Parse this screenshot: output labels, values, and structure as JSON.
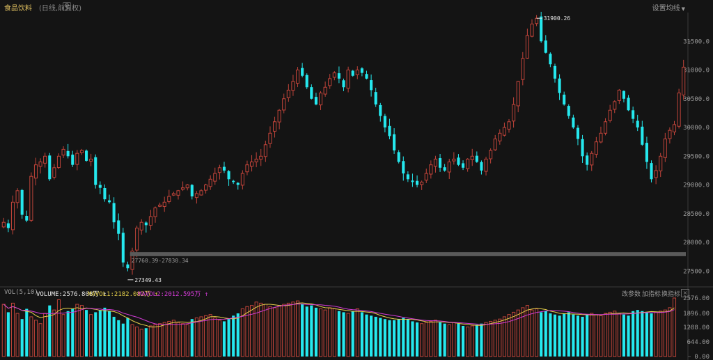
{
  "header": {
    "title": "食品饮料",
    "subtitle": "(日线,前复权)",
    "settings_label": "设置均线",
    "caret": "▼"
  },
  "volume_panel": {
    "name": "VOL(5,10)",
    "volume_label": "VOLUME:2576.808万 ↑",
    "mavol1_label": "MAVOL1:2182.082万 ↑",
    "mavol2_label": "MAVOL2:2012.595万 ↑",
    "actions": [
      "改参数",
      "加指标",
      "换指标"
    ],
    "close": "×"
  },
  "colors": {
    "up": "#c2443a",
    "down": "#25e8ee",
    "mavol1": "#e6d04a",
    "mavol2": "#d33bd6",
    "range_bar": "#5a5a5a"
  },
  "chart_data": [
    {
      "type": "candlestick",
      "title": "食品饮料",
      "subtitle": "(日线,前复权)",
      "ylim": [
        27250,
        32000
      ],
      "y_ticks": [
        "31500.0",
        "31000.0",
        "30500.0",
        "30000.0",
        "29500.0",
        "29000.0",
        "28500.0",
        "28000.0",
        "27500.0"
      ],
      "y_tick_values": [
        31500,
        31000,
        30500,
        30000,
        29500,
        29000,
        28500,
        28000,
        27500
      ],
      "annotations": {
        "high": {
          "label": "31900.26",
          "value": 31900.26
        },
        "low": {
          "label": "27349.43",
          "value": 27349.43
        },
        "range_label": "27760.39-27830.34",
        "range": [
          27760.39,
          27830.34
        ]
      },
      "close_path": [
        28350,
        28250,
        28700,
        28900,
        28480,
        28380,
        29150,
        29350,
        29400,
        29500,
        29100,
        29300,
        29500,
        29620,
        29500,
        29350,
        29550,
        29600,
        29420,
        29450,
        29000,
        28950,
        28750,
        28700,
        28350,
        28150,
        27650,
        27550,
        27850,
        28250,
        28350,
        28300,
        28450,
        28600,
        28650,
        28700,
        28800,
        28850,
        28900,
        28950,
        29000,
        28800,
        28850,
        28900,
        29000,
        29100,
        29200,
        29300,
        29250,
        29100,
        29050,
        29000,
        29200,
        29350,
        29400,
        29450,
        29500,
        29700,
        29900,
        30100,
        30300,
        30500,
        30650,
        30800,
        31000,
        30900,
        30700,
        30500,
        30400,
        30600,
        30700,
        30850,
        30950,
        30850,
        30700,
        31000,
        30900,
        31000,
        30950,
        30850,
        30650,
        30400,
        30200,
        30000,
        29850,
        29600,
        29400,
        29200,
        29100,
        29050,
        29000,
        29050,
        29200,
        29350,
        29450,
        29300,
        29250,
        29400,
        29450,
        29350,
        29300,
        29450,
        29500,
        29400,
        29250,
        29450,
        29600,
        29800,
        29900,
        30000,
        30100,
        30400,
        30800,
        31200,
        31600,
        31800,
        31900,
        31500,
        31300,
        31100,
        30850,
        30600,
        30400,
        30200,
        30000,
        29800,
        29500,
        29350,
        29550,
        29750,
        29900,
        30100,
        30300,
        30450,
        30650,
        30500,
        30300,
        30150,
        30000,
        29700,
        29400,
        29100,
        29250,
        29500,
        29800,
        29950,
        30050,
        30600,
        31050
      ],
      "volume": {
        "ylim": [
          0,
          2576
        ],
        "y_ticks": [
          "2576.00",
          "1896.00",
          "1288.00",
          "644.00",
          "0.00"
        ],
        "y_tick_values": [
          2576,
          1896,
          1288,
          644,
          0
        ],
        "latest": 2576.808,
        "mavol1": 2182.082,
        "mavol2": 2012.595,
        "values": [
          2300,
          1950,
          2350,
          1900,
          1650,
          2100,
          1750,
          1600,
          1450,
          1900,
          2250,
          2050,
          2500,
          1850,
          2000,
          2100,
          2300,
          2250,
          2050,
          1850,
          1950,
          2050,
          2150,
          2000,
          1750,
          1600,
          1450,
          1700,
          1400,
          1300,
          1200,
          1250,
          1350,
          1400,
          1450,
          1500,
          1550,
          1600,
          1500,
          1450,
          1400,
          1650,
          1700,
          1750,
          1800,
          1850,
          1700,
          1600,
          1550,
          1650,
          1800,
          1900,
          2100,
          2200,
          2250,
          2400,
          2350,
          2300,
          2200,
          2150,
          2250,
          2300,
          2350,
          2400,
          2450,
          2300,
          2200,
          2250,
          2150,
          2100,
          2050,
          2150,
          2100,
          2000,
          1950,
          1900,
          2000,
          2100,
          1950,
          1850,
          1800,
          1750,
          1700,
          1650,
          1600,
          1600,
          1650,
          1700,
          1650,
          1550,
          1500,
          1450,
          1500,
          1550,
          1600,
          1500,
          1450,
          1400,
          1500,
          1450,
          1350,
          1300,
          1350,
          1400,
          1450,
          1500,
          1550,
          1600,
          1650,
          1750,
          1850,
          1950,
          2050,
          2150,
          2250,
          2050,
          2100,
          1950,
          2000,
          1900,
          1850,
          1800,
          1900,
          1950,
          1850,
          1800,
          1750,
          1850,
          1900,
          1850,
          1800,
          1900,
          1950,
          2000,
          1900,
          1850,
          1800,
          2000,
          2050,
          2000,
          1950,
          1900,
          1950,
          2000,
          2050,
          2150,
          2576.808
        ]
      }
    }
  ]
}
